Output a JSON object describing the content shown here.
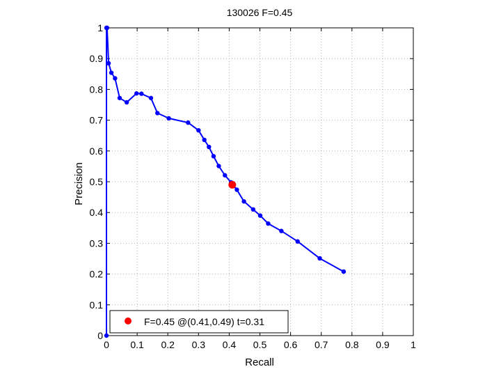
{
  "chart_data": {
    "type": "line",
    "title": "130026 F=0.45",
    "xlabel": "Recall",
    "ylabel": "Precision",
    "xlim": [
      0,
      1
    ],
    "ylim": [
      0,
      1
    ],
    "xticks": [
      "0",
      "0.1",
      "0.2",
      "0.3",
      "0.4",
      "0.5",
      "0.6",
      "0.7",
      "0.8",
      "0.9",
      "1"
    ],
    "yticks": [
      "0",
      "0.1",
      "0.2",
      "0.3",
      "0.4",
      "0.5",
      "0.6",
      "0.7",
      "0.8",
      "0.9",
      "1"
    ],
    "grid": true,
    "legend_position": "bottom-left",
    "series": [
      {
        "color": "#0000ff",
        "x": [
          0.0,
          0.0,
          0.002,
          0.007,
          0.016,
          0.028,
          0.043,
          0.066,
          0.098,
          0.114,
          0.145,
          0.166,
          0.203,
          0.266,
          0.3,
          0.319,
          0.334,
          0.349,
          0.366,
          0.386,
          0.406,
          0.425,
          0.448,
          0.478,
          0.501,
          0.527,
          0.57,
          0.623,
          0.695,
          0.773
        ],
        "y": [
          0.0,
          1.0,
          1.0,
          0.885,
          0.854,
          0.836,
          0.772,
          0.758,
          0.787,
          0.786,
          0.772,
          0.723,
          0.706,
          0.692,
          0.667,
          0.636,
          0.613,
          0.583,
          0.551,
          0.521,
          0.498,
          0.474,
          0.436,
          0.41,
          0.39,
          0.364,
          0.34,
          0.306,
          0.251,
          0.208
        ]
      }
    ],
    "highlight_point": {
      "x": 0.41,
      "y": 0.49,
      "color": "#ff0000"
    },
    "legend": {
      "label": "F=0.45 @(0.41,0.49) t=0.31",
      "marker_color": "#ff0000"
    }
  }
}
